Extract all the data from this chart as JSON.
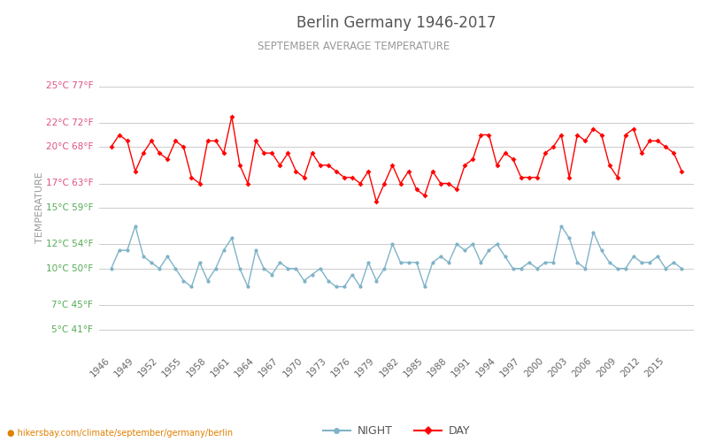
{
  "title": "Berlin Germany 1946-2017",
  "subtitle": "SEPTEMBER AVERAGE TEMPERATURE",
  "ylabel": "TEMPERATURE",
  "website": "hikersbay.com/climate/september/germany/berlin",
  "years": [
    1946,
    1947,
    1948,
    1949,
    1950,
    1951,
    1952,
    1953,
    1954,
    1955,
    1956,
    1957,
    1958,
    1959,
    1960,
    1961,
    1962,
    1963,
    1964,
    1965,
    1966,
    1967,
    1968,
    1969,
    1970,
    1971,
    1972,
    1973,
    1974,
    1975,
    1976,
    1977,
    1978,
    1979,
    1980,
    1981,
    1982,
    1983,
    1984,
    1985,
    1986,
    1987,
    1988,
    1989,
    1990,
    1991,
    1992,
    1993,
    1994,
    1995,
    1996,
    1997,
    1998,
    1999,
    2000,
    2001,
    2002,
    2003,
    2004,
    2005,
    2006,
    2007,
    2008,
    2009,
    2010,
    2011,
    2012,
    2013,
    2014,
    2015,
    2016,
    2017
  ],
  "day": [
    20.0,
    21.0,
    20.5,
    18.0,
    19.5,
    20.5,
    19.5,
    19.0,
    20.5,
    20.0,
    17.5,
    17.0,
    20.5,
    20.5,
    19.5,
    22.5,
    18.5,
    17.0,
    20.5,
    19.5,
    19.5,
    18.5,
    19.5,
    18.0,
    17.5,
    19.5,
    18.5,
    18.5,
    18.0,
    17.5,
    17.5,
    17.0,
    18.0,
    15.5,
    17.0,
    18.5,
    17.0,
    18.0,
    16.5,
    16.0,
    18.0,
    17.0,
    17.0,
    16.5,
    18.5,
    19.0,
    21.0,
    21.0,
    18.5,
    19.5,
    19.0,
    17.5,
    17.5,
    17.5,
    19.5,
    20.0,
    21.0,
    17.5,
    21.0,
    20.5,
    21.5,
    21.0,
    18.5,
    17.5,
    21.0,
    21.5,
    19.5,
    20.5,
    20.5,
    20.0,
    19.5,
    18.0
  ],
  "night": [
    10.0,
    11.5,
    11.5,
    13.5,
    11.0,
    10.5,
    10.0,
    11.0,
    10.0,
    9.0,
    8.5,
    10.5,
    9.0,
    10.0,
    11.5,
    12.5,
    10.0,
    8.5,
    11.5,
    10.0,
    9.5,
    10.5,
    10.0,
    10.0,
    9.0,
    9.5,
    10.0,
    9.0,
    8.5,
    8.5,
    9.5,
    8.5,
    10.5,
    9.0,
    10.0,
    12.0,
    10.5,
    10.5,
    10.5,
    8.5,
    10.5,
    11.0,
    10.5,
    12.0,
    11.5,
    12.0,
    10.5,
    11.5,
    12.0,
    11.0,
    10.0,
    10.0,
    10.5,
    10.0,
    10.5,
    10.5,
    13.5,
    12.5,
    10.5,
    10.0,
    13.0,
    11.5,
    10.5,
    10.0,
    10.0,
    11.0,
    10.5,
    10.5,
    11.0,
    10.0,
    10.5,
    10.0
  ],
  "day_color": "#ff0000",
  "night_color": "#7fb3c8",
  "background_color": "#ffffff",
  "grid_color": "#cccccc",
  "title_color": "#555555",
  "subtitle_color": "#999999",
  "ylabel_color": "#999999",
  "tick_color_pink": "#e05080",
  "tick_color_green": "#55aa55",
  "yticks_celsius": [
    5,
    7,
    10,
    12,
    15,
    17,
    20,
    22,
    25
  ],
  "yticks_fahrenheit": [
    41,
    45,
    50,
    54,
    59,
    63,
    68,
    72,
    77
  ],
  "ylim": [
    3.0,
    27.0
  ],
  "xlim": [
    1944.5,
    2018.5
  ],
  "xtick_step": 3,
  "legend_night_label": "NIGHT",
  "legend_day_label": "DAY"
}
